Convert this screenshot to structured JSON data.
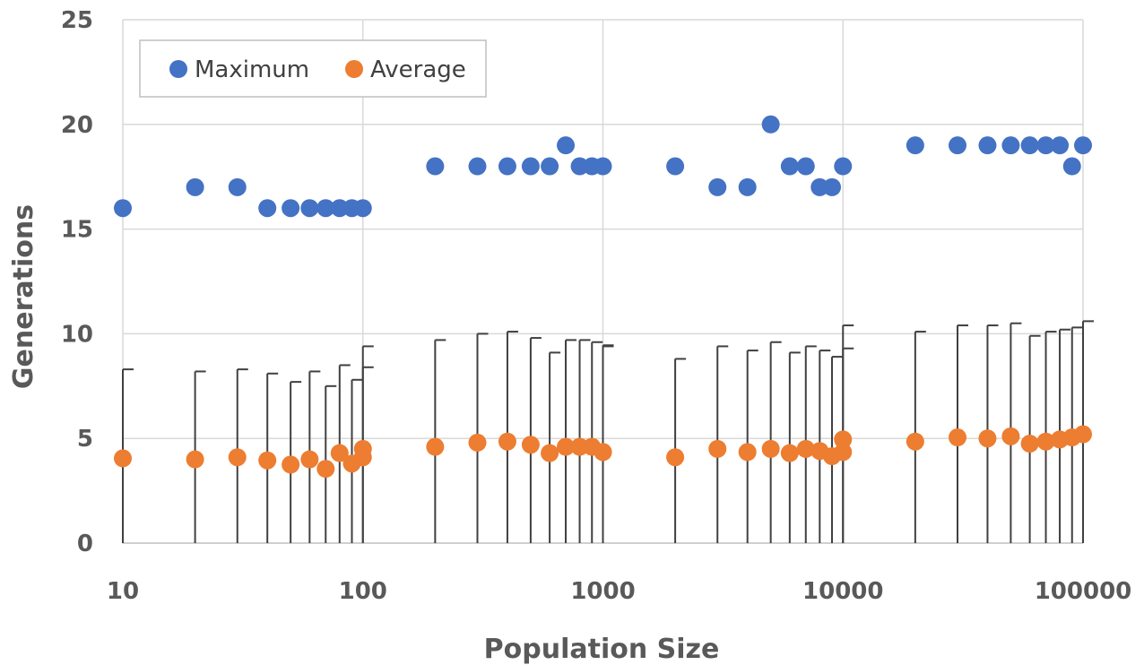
{
  "chart_data": {
    "type": "scatter",
    "title": "",
    "xlabel": "Population Size",
    "ylabel": "Generations",
    "x_scale": "log",
    "xlim": [
      10,
      100000
    ],
    "ylim": [
      0,
      25
    ],
    "x_ticks": [
      10,
      100,
      1000,
      10000,
      100000
    ],
    "x_tick_labels": [
      "10",
      "100",
      "1000",
      "10000",
      "100000"
    ],
    "y_ticks": [
      0,
      5,
      10,
      15,
      20,
      25
    ],
    "y_tick_labels": [
      "0",
      "5",
      "10",
      "15",
      "20",
      "25"
    ],
    "grid": true,
    "legend_position": "top-left",
    "x": [
      10,
      20,
      30,
      40,
      50,
      60,
      70,
      80,
      90,
      100,
      200,
      300,
      400,
      500,
      600,
      700,
      800,
      900,
      1000,
      2000,
      3000,
      4000,
      5000,
      6000,
      7000,
      8000,
      9000,
      10000,
      20000,
      30000,
      40000,
      50000,
      60000,
      70000,
      80000,
      90000,
      100000
    ],
    "series": [
      {
        "name": "Maximum",
        "color": "#4472c4",
        "values": [
          16,
          17,
          17,
          16,
          16,
          16,
          16,
          16,
          16,
          16,
          18,
          18,
          18,
          18,
          18,
          19,
          18,
          18,
          18,
          18,
          17,
          17,
          20,
          18,
          18,
          17,
          17,
          18,
          19,
          19,
          19,
          19,
          19,
          19,
          19,
          18,
          19
        ]
      },
      {
        "name": "Average",
        "color": "#ed7d31",
        "values": [
          4.05,
          4.0,
          4.1,
          3.95,
          3.75,
          4.0,
          3.55,
          4.3,
          3.8,
          4.1,
          4.6,
          4.8,
          4.85,
          4.7,
          4.3,
          4.6,
          4.6,
          4.6,
          4.35,
          4.1,
          4.5,
          4.35,
          4.5,
          4.3,
          4.5,
          4.4,
          4.15,
          4.35,
          4.85,
          5.05,
          5.0,
          5.1,
          4.75,
          4.85,
          4.95,
          5.05,
          5.2
        ],
        "error_upper": [
          8.3,
          8.2,
          8.3,
          8.1,
          7.7,
          8.2,
          7.5,
          8.5,
          7.8,
          8.4,
          9.7,
          10.0,
          10.1,
          9.8,
          9.1,
          9.7,
          9.7,
          9.6,
          9.4,
          8.8,
          9.4,
          9.2,
          9.6,
          9.1,
          9.4,
          9.2,
          8.9,
          9.3,
          10.1,
          10.4,
          10.4,
          10.5,
          9.9,
          10.1,
          10.2,
          10.3,
          10.6
        ]
      }
    ],
    "extra_error_points": [
      {
        "x": 100,
        "average": 4.5,
        "error_upper": 9.4
      },
      {
        "x": 1000,
        "average": 4.35,
        "error_upper": 9.45
      },
      {
        "x": 10000,
        "average": 4.95,
        "error_upper": 10.4
      }
    ]
  }
}
